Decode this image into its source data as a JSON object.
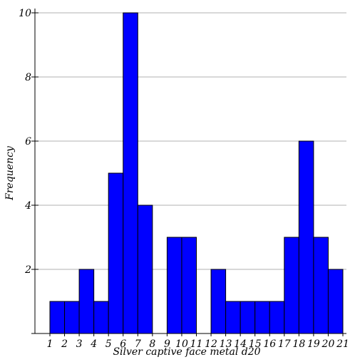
{
  "chart_data": {
    "type": "bar",
    "title": "",
    "xlabel": "Silver captive face metal d20",
    "ylabel": "Frequency",
    "x_ticks": [
      "1",
      "2",
      "3",
      "4",
      "5",
      "6",
      "7",
      "8",
      "9",
      "10",
      "11",
      "12",
      "13",
      "14",
      "15",
      "16",
      "17",
      "18",
      "19",
      "20",
      "21"
    ],
    "y_ticks": [
      "2",
      "4",
      "6",
      "8",
      "10"
    ],
    "ylim": [
      0,
      10
    ],
    "bins": [
      1,
      2,
      3,
      4,
      5,
      6,
      7,
      8,
      9,
      10,
      11,
      12,
      13,
      14,
      15,
      16,
      17,
      18,
      19,
      20
    ],
    "values": [
      1,
      1,
      2,
      1,
      5,
      10,
      4,
      0,
      3,
      3,
      0,
      2,
      1,
      1,
      1,
      1,
      3,
      6,
      3,
      2
    ],
    "bar_color": "#0000ff",
    "grid": true
  }
}
